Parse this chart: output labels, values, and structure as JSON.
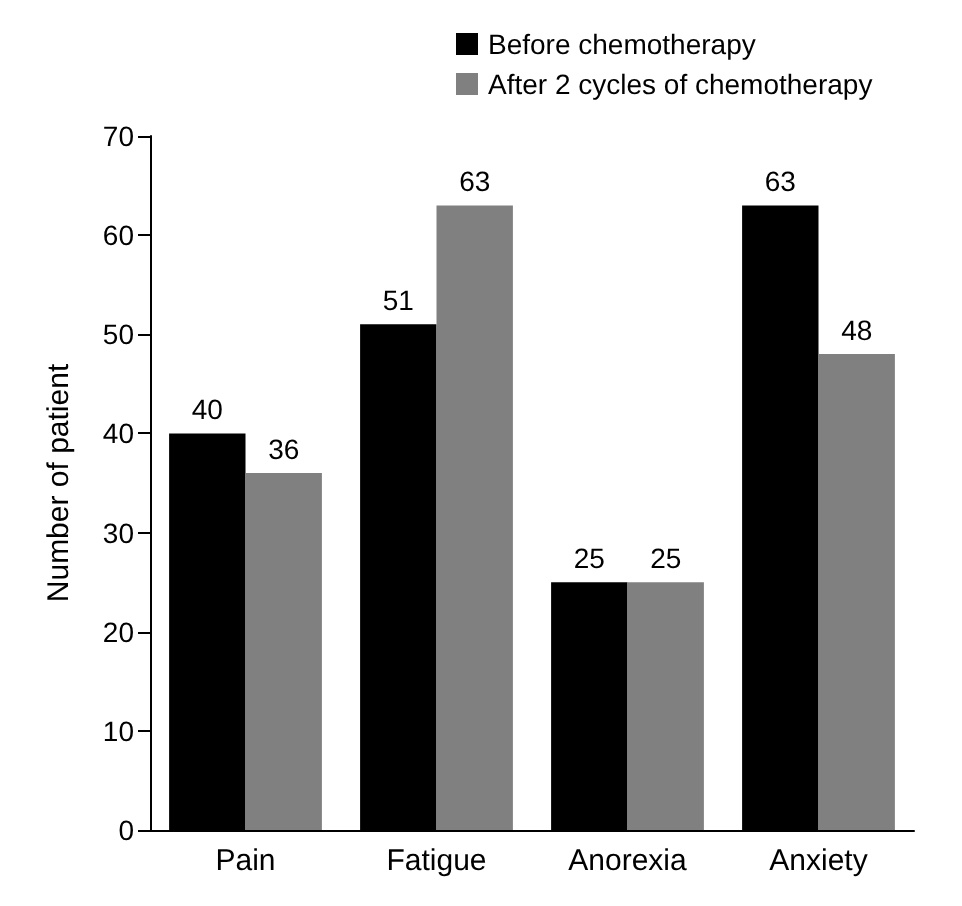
{
  "chart_data": {
    "type": "bar",
    "ylabel": "Number of patient",
    "categories": [
      "Pain",
      "Fatigue",
      "Anorexia",
      "Anxiety"
    ],
    "series": [
      {
        "name": "Before chemotherapy",
        "color": "#000000",
        "values": [
          40,
          51,
          25,
          63
        ]
      },
      {
        "name": "After 2 cycles of chemotherapy",
        "color": "#808080",
        "values": [
          36,
          63,
          25,
          48
        ]
      }
    ],
    "ylim": [
      0,
      70
    ],
    "yticks": [
      0,
      10,
      20,
      30,
      40,
      50,
      60,
      70
    ],
    "data_labels": true,
    "grid": false,
    "legend": "top"
  }
}
